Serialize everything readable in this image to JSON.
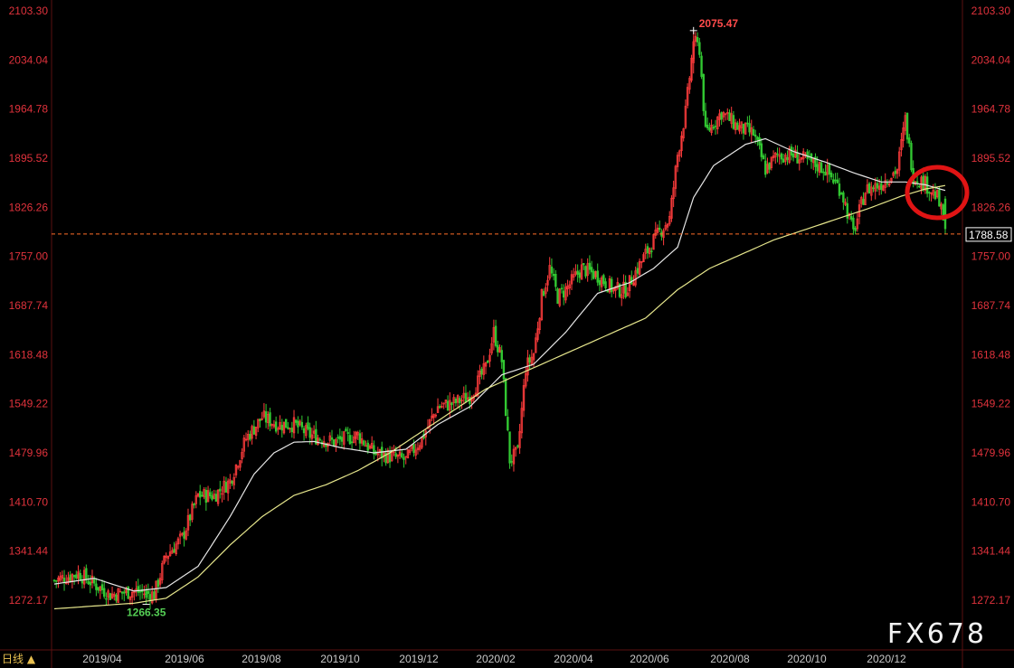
{
  "chart_data": {
    "type": "candlestick",
    "period_label": "日线",
    "period_arrow": "▲",
    "watermark": "FX678",
    "y_ticks": [
      2103.3,
      2034.04,
      1964.78,
      1895.52,
      1826.26,
      1757.0,
      1687.74,
      1618.48,
      1549.22,
      1479.96,
      1410.7,
      1341.44,
      1272.17
    ],
    "y_tick_labels": [
      "2103.30",
      "2034.04",
      "1964.78",
      "1895.52",
      "1826.26",
      "1757.00",
      "1687.74",
      "1618.48",
      "1549.22",
      "1479.96",
      "1410.70",
      "1341.44",
      "1272.17"
    ],
    "x_ticks": [
      "2019/04",
      "2019/06",
      "2019/08",
      "2019/10",
      "2019/12",
      "2020/02",
      "2020/04",
      "2020/06",
      "2020/08",
      "2020/10",
      "2020/12"
    ],
    "high_label": "2075.47",
    "low_label": "1266.35",
    "last_price": 1788.58,
    "last_price_label": "1788.58",
    "anchors": [
      [
        0,
        1300
      ],
      [
        12,
        1310
      ],
      [
        20,
        1295
      ],
      [
        28,
        1280
      ],
      [
        40,
        1285
      ],
      [
        50,
        1280
      ],
      [
        56,
        1335
      ],
      [
        64,
        1360
      ],
      [
        72,
        1420
      ],
      [
        80,
        1420
      ],
      [
        88,
        1440
      ],
      [
        96,
        1500
      ],
      [
        104,
        1530
      ],
      [
        112,
        1520
      ],
      [
        120,
        1520
      ],
      [
        128,
        1505
      ],
      [
        140,
        1495
      ],
      [
        152,
        1505
      ],
      [
        160,
        1480
      ],
      [
        168,
        1475
      ],
      [
        176,
        1470
      ],
      [
        184,
        1500
      ],
      [
        192,
        1545
      ],
      [
        200,
        1550
      ],
      [
        208,
        1560
      ],
      [
        216,
        1600
      ],
      [
        220,
        1650
      ],
      [
        224,
        1610
      ],
      [
        228,
        1470
      ],
      [
        232,
        1480
      ],
      [
        236,
        1600
      ],
      [
        240,
        1620
      ],
      [
        244,
        1700
      ],
      [
        248,
        1740
      ],
      [
        252,
        1700
      ],
      [
        256,
        1710
      ],
      [
        264,
        1740
      ],
      [
        272,
        1730
      ],
      [
        280,
        1710
      ],
      [
        286,
        1710
      ],
      [
        292,
        1740
      ],
      [
        300,
        1780
      ],
      [
        308,
        1810
      ],
      [
        312,
        1900
      ],
      [
        316,
        1960
      ],
      [
        320,
        2060
      ],
      [
        323,
        2050
      ],
      [
        326,
        1930
      ],
      [
        334,
        1960
      ],
      [
        342,
        1940
      ],
      [
        350,
        1930
      ],
      [
        356,
        1880
      ],
      [
        362,
        1900
      ],
      [
        370,
        1900
      ],
      [
        378,
        1890
      ],
      [
        386,
        1880
      ],
      [
        394,
        1850
      ],
      [
        400,
        1790
      ],
      [
        406,
        1850
      ],
      [
        414,
        1860
      ],
      [
        422,
        1880
      ],
      [
        426,
        1950
      ],
      [
        430,
        1870
      ],
      [
        436,
        1860
      ],
      [
        442,
        1840
      ],
      [
        446,
        1800
      ]
    ],
    "ma_short_anchors": [
      [
        0,
        1295
      ],
      [
        20,
        1303
      ],
      [
        40,
        1285
      ],
      [
        56,
        1290
      ],
      [
        72,
        1320
      ],
      [
        88,
        1390
      ],
      [
        100,
        1450
      ],
      [
        110,
        1480
      ],
      [
        120,
        1495
      ],
      [
        130,
        1496
      ],
      [
        144,
        1487
      ],
      [
        160,
        1480
      ],
      [
        176,
        1485
      ],
      [
        192,
        1520
      ],
      [
        208,
        1545
      ],
      [
        224,
        1590
      ],
      [
        240,
        1605
      ],
      [
        256,
        1650
      ],
      [
        272,
        1705
      ],
      [
        288,
        1720
      ],
      [
        300,
        1740
      ],
      [
        312,
        1770
      ],
      [
        320,
        1840
      ],
      [
        330,
        1885
      ],
      [
        346,
        1915
      ],
      [
        356,
        1923
      ],
      [
        370,
        1905
      ],
      [
        386,
        1890
      ],
      [
        400,
        1875
      ],
      [
        414,
        1862
      ],
      [
        426,
        1862
      ],
      [
        436,
        1858
      ],
      [
        446,
        1850
      ]
    ],
    "ma_long_anchors": [
      [
        0,
        1260
      ],
      [
        40,
        1268
      ],
      [
        56,
        1275
      ],
      [
        72,
        1305
      ],
      [
        88,
        1350
      ],
      [
        104,
        1390
      ],
      [
        120,
        1420
      ],
      [
        136,
        1435
      ],
      [
        152,
        1455
      ],
      [
        168,
        1480
      ],
      [
        184,
        1510
      ],
      [
        200,
        1540
      ],
      [
        216,
        1570
      ],
      [
        232,
        1590
      ],
      [
        248,
        1610
      ],
      [
        264,
        1630
      ],
      [
        280,
        1650
      ],
      [
        296,
        1670
      ],
      [
        312,
        1710
      ],
      [
        328,
        1740
      ],
      [
        344,
        1760
      ],
      [
        360,
        1780
      ],
      [
        376,
        1795
      ],
      [
        392,
        1810
      ],
      [
        408,
        1825
      ],
      [
        424,
        1842
      ],
      [
        436,
        1852
      ],
      [
        446,
        1857
      ]
    ],
    "colors": {
      "up": "#ff3c3c",
      "down": "#32c832",
      "ma_short": "#e6e6e6",
      "ma_long": "#e6e68c",
      "axis_text": "#e0323c",
      "last_line": "#ff6e28",
      "circle": "#e01414"
    }
  }
}
